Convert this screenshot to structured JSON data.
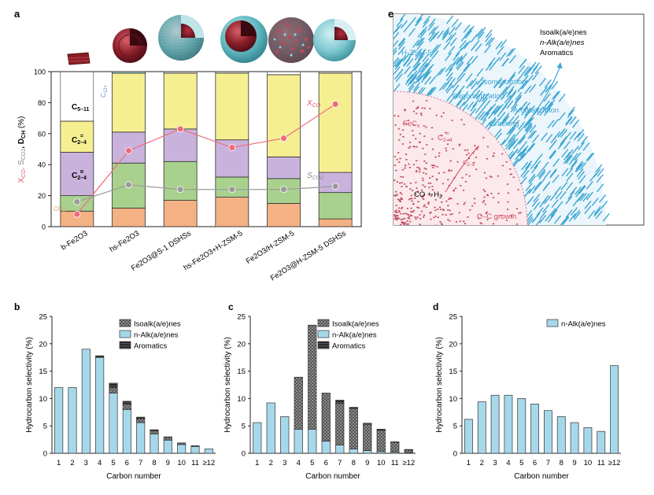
{
  "colors": {
    "ch4": "#f4b183",
    "c2_4_paraffin": "#a9d18e",
    "c2_4_olefin": "#c9b3dd",
    "c5_11": "#f5ef92",
    "c12plus": "#9fd6e2",
    "xco": "#ef6b7b",
    "sco2": "#9a9a9a",
    "light_blue": "#a6d8ea",
    "dark": "#333333",
    "blue_line": "#3fa6d2",
    "red_dots": "#c0485a"
  },
  "chart_data": [
    {
      "panel": "a",
      "type": "bar",
      "stacked": true,
      "categories": [
        "b-Fe2O3",
        "hs-Fe2O3",
        "Fe2O3@S-1 DSHSs",
        "hs-Fe2O3+H-ZSM-5",
        "Fe2O3/H-ZSM-5",
        "Fe2O3@H-ZSM-5 DSHSs"
      ],
      "series": [
        {
          "name": "CH4",
          "values": [
            10,
            12,
            17,
            19,
            15,
            5
          ]
        },
        {
          "name": "C2-4 paraffin",
          "values": [
            10,
            29,
            25,
            13,
            16,
            17
          ]
        },
        {
          "name": "C2-4 olefin",
          "values": [
            28,
            20,
            21,
            24,
            14,
            13
          ]
        },
        {
          "name": "C5-11",
          "values": [
            20,
            38,
            36,
            43,
            53,
            64
          ]
        },
        {
          "name": "C12+",
          "values": [
            0,
            1,
            0,
            0,
            0,
            0
          ]
        }
      ],
      "segment_labels": {
        "c5_11": "C",
        "c5_11_sub": "5–11",
        "c2_4o": "C",
        "c2_4o_sub": "2–4",
        "c2_4o_sup": "=",
        "c2_4p": "C",
        "c2_4p_sub": "2–4",
        "c2_4p_sup": "o",
        "ch4": "CH",
        "ch4_sub": "4",
        "c12": "C",
        "c12_sub": "12+"
      },
      "lines": [
        {
          "name": "XCO",
          "values": [
            8,
            49,
            63,
            51,
            57,
            79
          ]
        },
        {
          "name": "SCO2",
          "values": [
            16,
            27,
            24,
            24,
            24,
            26
          ]
        }
      ],
      "line_labels": {
        "xco": "X",
        "xco_sub": "CO",
        "sco2": "S",
        "sco2_sub": "CO2"
      },
      "ylim": [
        0,
        100
      ],
      "yticks": [
        "0",
        "20",
        "40",
        "60",
        "80",
        "100"
      ],
      "ylabel": {
        "x": "X",
        "x_sub": "CO",
        "s": ", S",
        "s_sub": "CO2",
        "d": ", D",
        "d_sub": "CH",
        "unit": " (%)"
      }
    },
    {
      "panel": "b",
      "type": "bar",
      "stacked": true,
      "categories": [
        "1",
        "2",
        "3",
        "4",
        "5",
        "6",
        "7",
        "8",
        "9",
        "10",
        "11",
        "≥12"
      ],
      "series": [
        {
          "name": "n-Alk(a/e)nes",
          "values": [
            12,
            12,
            19,
            17.5,
            11,
            8,
            5.6,
            3.5,
            2.4,
            1.6,
            1.2,
            0.8
          ]
        },
        {
          "name": "Isoalk(a/e)nes",
          "values": [
            0,
            0,
            0,
            0,
            1,
            1,
            0.7,
            0.6,
            0.5,
            0.3,
            0.2,
            0
          ]
        },
        {
          "name": "Aromatics",
          "values": [
            0,
            0,
            0,
            0.3,
            0.8,
            0.5,
            0.3,
            0.2,
            0.1,
            0,
            0,
            0
          ]
        }
      ],
      "legend": [
        "Isoalk(a/e)nes",
        "n-Alk(a/e)nes",
        "Aromatics"
      ],
      "ylim": [
        0,
        25
      ],
      "yticks": [
        "0",
        "5",
        "10",
        "15",
        "20",
        "25"
      ],
      "xlabel": "Carbon number",
      "ylabel": "Hydrocarbon selectivity (%)"
    },
    {
      "panel": "c",
      "type": "bar",
      "stacked": true,
      "categories": [
        "1",
        "2",
        "3",
        "4",
        "5",
        "6",
        "7",
        "8",
        "9",
        "10",
        "11",
        "≥12"
      ],
      "series": [
        {
          "name": "n-Alk(a/e)nes",
          "values": [
            5.6,
            9.2,
            6.7,
            4.4,
            4.4,
            2.2,
            1.5,
            0.8,
            0.5,
            0.3,
            0.2,
            0.1
          ]
        },
        {
          "name": "Isoalk(a/e)nes",
          "values": [
            0,
            0,
            0,
            9.5,
            19,
            8.8,
            7.6,
            7.4,
            4.8,
            3.9,
            1.8,
            0.5
          ]
        },
        {
          "name": "Aromatics",
          "values": [
            0,
            0,
            0,
            0,
            0,
            0,
            0.6,
            0.2,
            0.2,
            0.2,
            0.1,
            0.1
          ]
        }
      ],
      "legend": [
        "Isoalk(a/e)nes",
        "n-Alk(a/e)nes",
        "Aromatics"
      ],
      "ylim": [
        0,
        25
      ],
      "yticks": [
        "0",
        "5",
        "10",
        "15",
        "20",
        "25"
      ],
      "xlabel": "Carbon number",
      "ylabel": "Hydrocarbon selectivity (%)"
    },
    {
      "panel": "d",
      "type": "bar",
      "stacked": false,
      "categories": [
        "1",
        "2",
        "3",
        "4",
        "5",
        "6",
        "7",
        "8",
        "9",
        "10",
        "11",
        "≥12"
      ],
      "series": [
        {
          "name": "n-Alk(a/e)nes",
          "values": [
            6.2,
            9.4,
            10.6,
            10.6,
            10,
            9,
            7.8,
            6.7,
            5.6,
            4.7,
            4,
            16
          ]
        }
      ],
      "legend": [
        "n-Alk(a/e)nes"
      ],
      "ylim": [
        0,
        25
      ],
      "yticks": [
        "0",
        "5",
        "10",
        "15",
        "20",
        "25"
      ],
      "xlabel": "Carbon number",
      "ylabel": "Hydrocarbon selectivity (%)"
    }
  ],
  "panel_letters": {
    "a": "a",
    "b": "b",
    "c": "c",
    "d": "d",
    "e": "e"
  },
  "scheme_e": {
    "zeolite": {
      "main": "H-ZSM-5"
    },
    "feco": {
      "main": "FeC",
      "sub": "x"
    },
    "products": [
      "Isoalk(a/e)nes",
      "n-Alk(a/e)nes",
      "Aromatics"
    ],
    "zeolite_steps": [
      "Isomerization",
      "Oligomerization",
      "Aromatization",
      "Cracking"
    ],
    "c24": {
      "main": "C",
      "sub": "2–4",
      "sup": "="
    },
    "c2n": {
      "main": "C",
      "sub": "2–5"
    },
    "reactants": {
      "main": "CO + H",
      "sub": "2"
    },
    "growth": "C–C growth"
  }
}
